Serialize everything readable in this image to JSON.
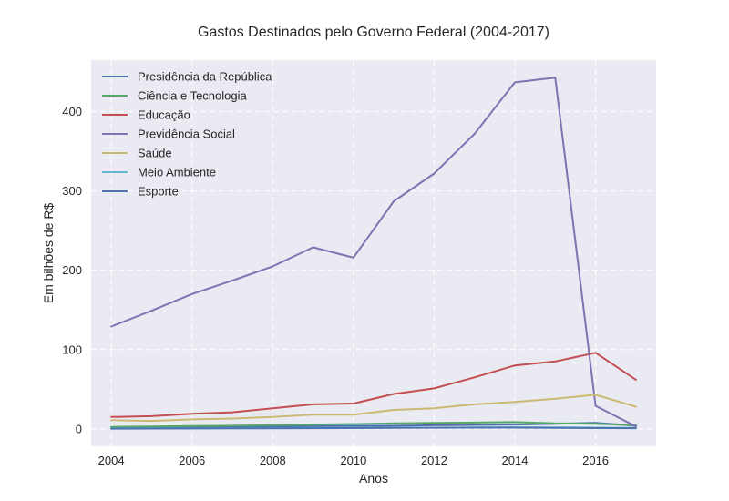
{
  "chart_data": {
    "type": "line",
    "title": "Gastos Destinados pelo Governo Federal (2004-2017)",
    "xlabel": "Anos",
    "ylabel": "Em bilhões de R$",
    "x": [
      2004,
      2005,
      2006,
      2007,
      2008,
      2009,
      2010,
      2011,
      2012,
      2013,
      2014,
      2015,
      2016,
      2017
    ],
    "xlim": [
      2003.5,
      2017.5
    ],
    "ylim": [
      -22,
      465
    ],
    "xticks": [
      2004,
      2006,
      2008,
      2010,
      2012,
      2014,
      2016
    ],
    "yticks": [
      0,
      100,
      200,
      300,
      400
    ],
    "grid": true,
    "legend_position": "top-left",
    "series": [
      {
        "name": "Presidência da República",
        "color": "#4c72b0",
        "values": [
          2.0,
          2.2,
          2.4,
          2.6,
          3.0,
          3.4,
          3.6,
          4.0,
          4.5,
          5.0,
          5.5,
          6.5,
          7.5,
          4.0
        ]
      },
      {
        "name": "Ciência e Tecnologia",
        "color": "#55a868",
        "values": [
          2.5,
          3.0,
          3.5,
          4.0,
          4.8,
          5.5,
          6.0,
          7.0,
          7.5,
          8.0,
          8.5,
          7.0,
          6.5,
          4.5
        ]
      },
      {
        "name": "Educação",
        "color": "#c44e52",
        "values": [
          15,
          16,
          19,
          21,
          26,
          31,
          32,
          44,
          51,
          65,
          80,
          85,
          96,
          62
        ]
      },
      {
        "name": "Previdência Social",
        "color": "#8172b2",
        "values": [
          129,
          149,
          170,
          187,
          205,
          229,
          216,
          287,
          322,
          372,
          437,
          443,
          29,
          3
        ]
      },
      {
        "name": "Saúde",
        "color": "#ccb974",
        "values": [
          11,
          10,
          12,
          13,
          15,
          18,
          18,
          24,
          26,
          31,
          34,
          38,
          43,
          28
        ]
      },
      {
        "name": "Meio Ambiente",
        "color": "#64b5cd",
        "values": [
          0.5,
          0.6,
          0.7,
          0.8,
          1.0,
          1.2,
          1.3,
          1.5,
          1.6,
          1.8,
          2.0,
          1.8,
          1.6,
          1.2
        ]
      },
      {
        "name": "Esporte",
        "color": "#4c72b0",
        "values": [
          0.3,
          0.4,
          0.5,
          0.6,
          0.7,
          0.8,
          1.0,
          1.2,
          1.4,
          1.6,
          1.6,
          1.2,
          1.0,
          0.8
        ]
      }
    ]
  }
}
